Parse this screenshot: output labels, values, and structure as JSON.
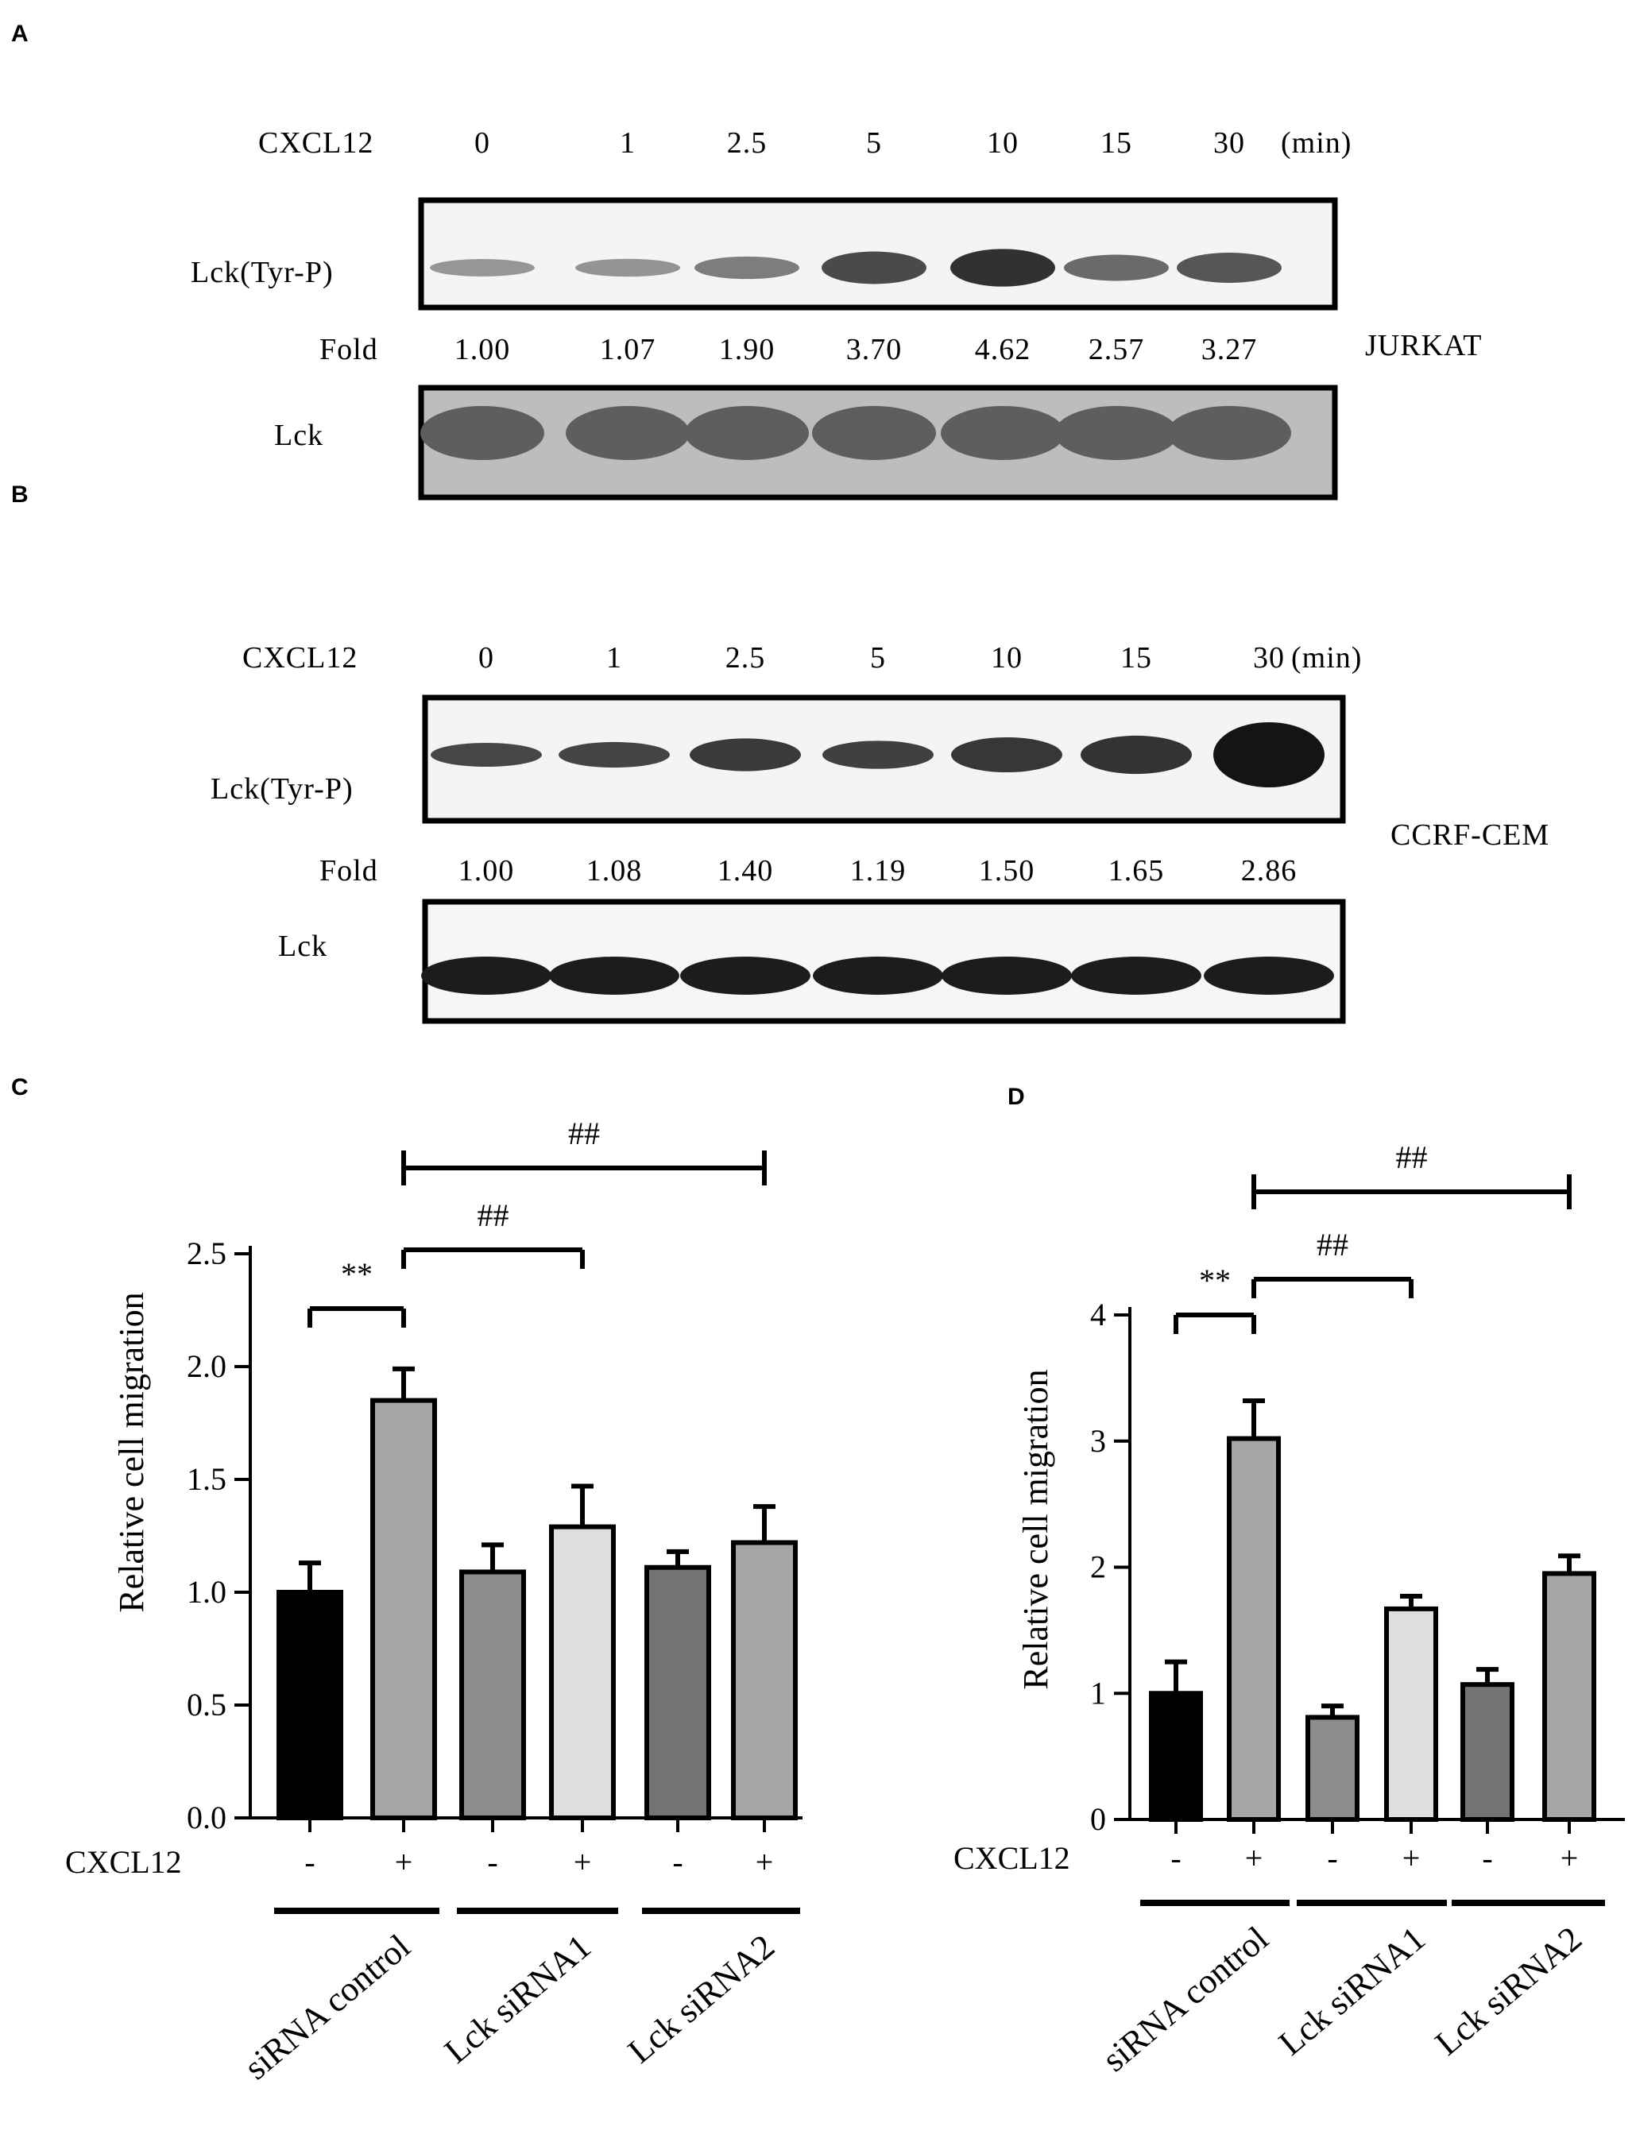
{
  "panels": [
    {
      "letter": "A"
    },
    {
      "letter": "B"
    },
    {
      "letter": "C"
    },
    {
      "letter": "D"
    }
  ],
  "blots": [
    {
      "treatment_label": "CXCL12",
      "time_points": [
        "0",
        "1",
        "2.5",
        "5",
        "10",
        "15",
        "30"
      ],
      "time_unit": "(min)",
      "phospho_label": "Lck(Tyr-P)",
      "fold_label": "Fold",
      "fold_values": [
        "1.00",
        "1.07",
        "1.90",
        "3.70",
        "4.62",
        "2.57",
        "3.27"
      ],
      "total_label": "Lck",
      "cell_line": "JURKAT"
    },
    {
      "treatment_label": "CXCL12",
      "time_points": [
        "0",
        "1",
        "2.5",
        "5",
        "10",
        "15",
        "30"
      ],
      "time_unit": "(min)",
      "phospho_label": "Lck(Tyr-P)",
      "fold_label": "Fold",
      "fold_values": [
        "1.00",
        "1.08",
        "1.40",
        "1.19",
        "1.50",
        "1.65",
        "2.86"
      ],
      "total_label": "Lck",
      "cell_line": "CCRF-CEM"
    }
  ],
  "chart_data": [
    {
      "type": "bar",
      "panel": "C",
      "ylabel": "Relative cell migration",
      "ylim": [
        0,
        2.5
      ],
      "yticks": [
        "0.0",
        "0.5",
        "1.0",
        "1.5",
        "2.0",
        "2.5"
      ],
      "treatment_label": "CXCL12",
      "treatment": [
        "-",
        "+",
        "-",
        "+",
        "-",
        "+"
      ],
      "groups": [
        "siRNA control",
        "Lck siRNA1",
        "Lck siRNA2"
      ],
      "values": [
        1.0,
        1.85,
        1.09,
        1.29,
        1.11,
        1.22
      ],
      "errors": [
        0.13,
        0.14,
        0.12,
        0.18,
        0.07,
        0.16
      ],
      "bar_colors": [
        "#000000",
        "#a6a6a6",
        "#8c8c8c",
        "#dedede",
        "#737373",
        "#a6a6a6"
      ],
      "significance": [
        {
          "label": "**",
          "from": 0,
          "to": 1
        },
        {
          "label": "##",
          "from": 1,
          "to": 3
        },
        {
          "label": "##",
          "from": 1,
          "to": 5
        }
      ]
    },
    {
      "type": "bar",
      "panel": "D",
      "ylabel": "Relative cell migration",
      "ylim": [
        0,
        4
      ],
      "yticks": [
        "0",
        "1",
        "2",
        "3",
        "4"
      ],
      "treatment_label": "CXCL12",
      "treatment": [
        "-",
        "+",
        "-",
        "+",
        "-",
        "+"
      ],
      "groups": [
        "siRNA control",
        "Lck siRNA1",
        "Lck siRNA2"
      ],
      "values": [
        1.0,
        3.02,
        0.81,
        1.67,
        1.07,
        1.95
      ],
      "errors": [
        0.25,
        0.3,
        0.09,
        0.1,
        0.12,
        0.14
      ],
      "bar_colors": [
        "#000000",
        "#a6a6a6",
        "#8c8c8c",
        "#dedede",
        "#737373",
        "#a6a6a6"
      ],
      "significance": [
        {
          "label": "**",
          "from": 0,
          "to": 1
        },
        {
          "label": "##",
          "from": 1,
          "to": 3
        },
        {
          "label": "##",
          "from": 1,
          "to": 5
        }
      ]
    }
  ]
}
